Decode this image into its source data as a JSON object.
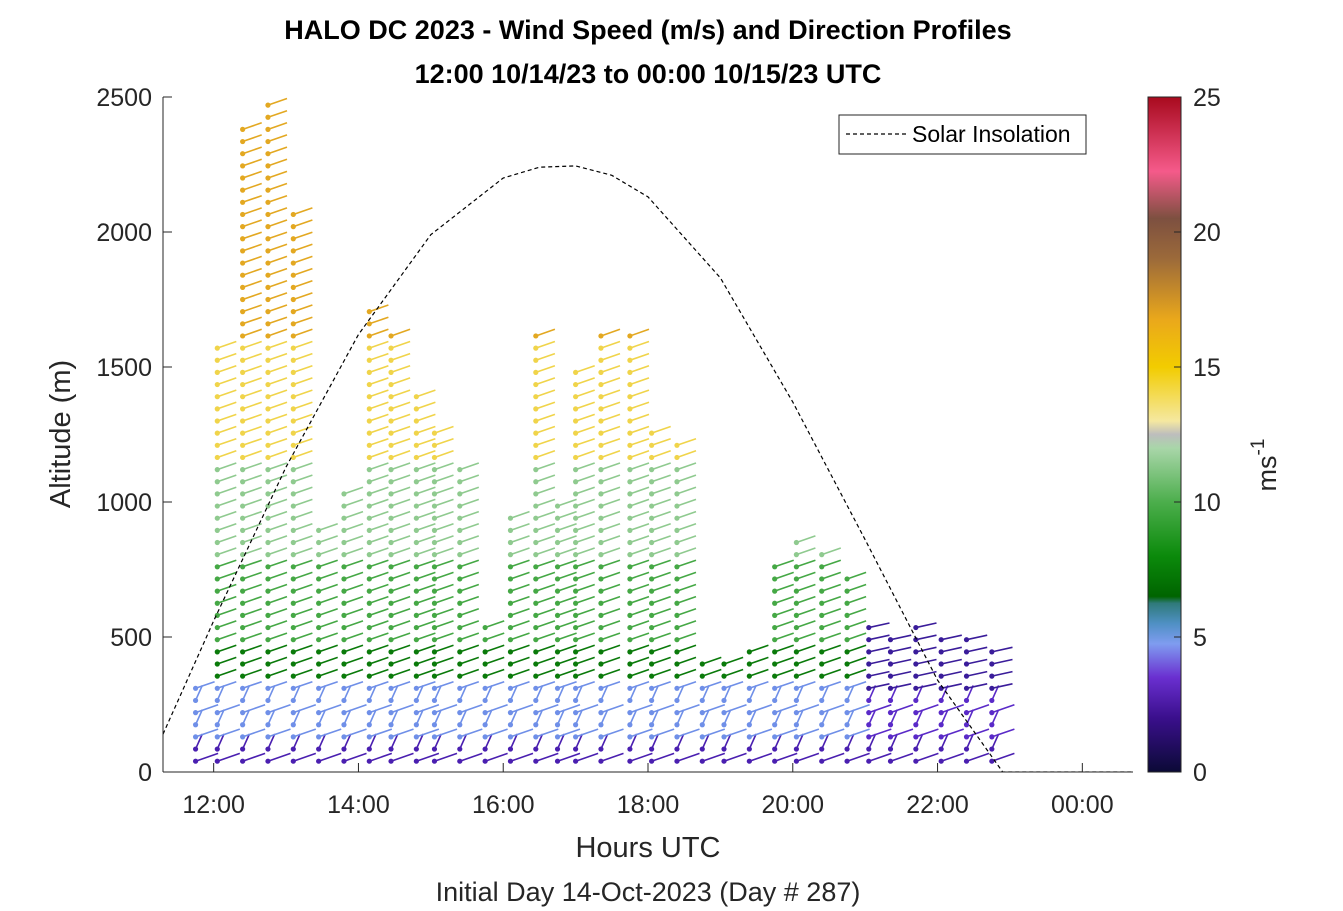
{
  "chart_data": {
    "type": "wind-barb-profile",
    "title": "HALO DC 2023 - Wind Speed (m/s) and Direction Profiles",
    "subtitle": "12:00 10/14/23 to 00:00 10/15/23  UTC",
    "xlabel": "Hours UTC",
    "xlabel2": "Initial Day 14-Oct-2023 (Day # 287)",
    "ylabel": "Altitude (m)",
    "xlim": [
      11.3,
      24.7
    ],
    "ylim": [
      0,
      2500
    ],
    "xticks": [
      12,
      14,
      16,
      18,
      20,
      22,
      24
    ],
    "xticklabels": [
      "12:00",
      "14:00",
      "16:00",
      "18:00",
      "20:00",
      "22:00",
      "00:00"
    ],
    "yticks": [
      0,
      500,
      1000,
      1500,
      2000,
      2500
    ],
    "yticklabels": [
      "0",
      "500",
      "1000",
      "1500",
      "2000",
      "2500"
    ],
    "legend": {
      "label": "Solar Insolation",
      "position": "top-right",
      "line_style": "dashed"
    },
    "colorbar": {
      "label": "ms",
      "label_exponent": "-1",
      "ticks": [
        0,
        5,
        10,
        15,
        20,
        25
      ],
      "ticklabels": [
        "0",
        "5",
        "10",
        "15",
        "20",
        "25"
      ],
      "range": [
        0,
        25
      ]
    },
    "solar_insolation": {
      "x": [
        11.3,
        12.0,
        13.0,
        14.0,
        15.0,
        16.0,
        16.5,
        17.0,
        17.5,
        18.0,
        19.0,
        20.0,
        21.0,
        22.0,
        22.9,
        24.7
      ],
      "y": [
        140,
        560,
        1130,
        1620,
        1990,
        2200,
        2240,
        2245,
        2210,
        2130,
        1830,
        1370,
        860,
        340,
        0,
        0
      ]
    },
    "profiles": [
      {
        "x": 11.75,
        "top": 320
      },
      {
        "x": 12.05,
        "top": 1570
      },
      {
        "x": 12.4,
        "top": 2420
      },
      {
        "x": 12.75,
        "top": 2490
      },
      {
        "x": 13.1,
        "top": 2090
      },
      {
        "x": 13.45,
        "top": 920
      },
      {
        "x": 13.8,
        "top": 1030
      },
      {
        "x": 14.15,
        "top": 1740
      },
      {
        "x": 14.45,
        "top": 1620
      },
      {
        "x": 14.8,
        "top": 1410
      },
      {
        "x": 15.05,
        "top": 1260
      },
      {
        "x": 15.4,
        "top": 1120
      },
      {
        "x": 15.75,
        "top": 540
      },
      {
        "x": 16.1,
        "top": 950
      },
      {
        "x": 16.45,
        "top": 1620
      },
      {
        "x": 16.75,
        "top": 990
      },
      {
        "x": 17.0,
        "top": 1490
      },
      {
        "x": 17.35,
        "top": 1620
      },
      {
        "x": 17.75,
        "top": 1620
      },
      {
        "x": 18.05,
        "top": 1260
      },
      {
        "x": 18.4,
        "top": 1210
      },
      {
        "x": 18.75,
        "top": 420
      },
      {
        "x": 19.05,
        "top": 440
      },
      {
        "x": 19.4,
        "top": 460
      },
      {
        "x": 19.75,
        "top": 780
      },
      {
        "x": 20.05,
        "top": 860
      },
      {
        "x": 20.4,
        "top": 830
      },
      {
        "x": 20.75,
        "top": 720
      },
      {
        "x": 21.05,
        "top": 540
      },
      {
        "x": 21.35,
        "top": 520
      },
      {
        "x": 21.7,
        "top": 540
      },
      {
        "x": 22.05,
        "top": 520
      },
      {
        "x": 22.4,
        "top": 490
      },
      {
        "x": 22.75,
        "top": 480
      }
    ]
  }
}
